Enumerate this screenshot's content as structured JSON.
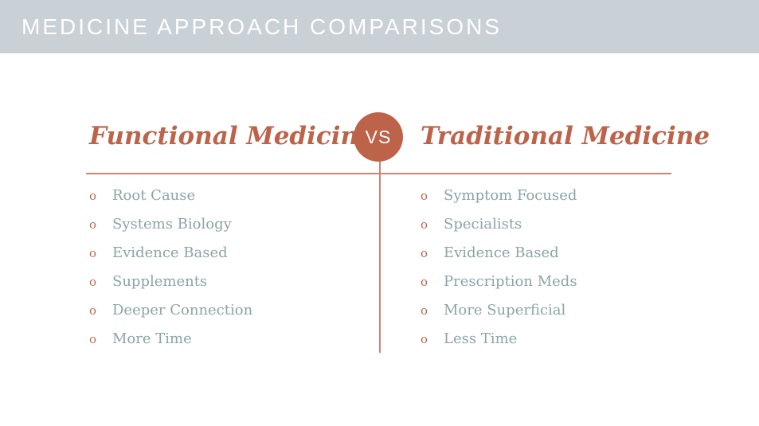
{
  "header": {
    "title": "MEDICINE APPROACH COMPARISONS"
  },
  "vs_badge": {
    "label": "VS"
  },
  "bullet_glyph": "o",
  "left_column": {
    "title": "Functional Medicine",
    "items": [
      "Root Cause",
      "Systems Biology",
      "Evidence Based",
      "Supplements",
      "Deeper Connection",
      "More Time"
    ]
  },
  "right_column": {
    "title": "Traditional Medicine",
    "items": [
      "Symptom Focused",
      "Specialists",
      "Evidence Based",
      "Prescription Meds",
      "More Superficial",
      "Less Time"
    ]
  },
  "colors": {
    "header_bar": "#c9d0d6",
    "header_text": "#ffffff",
    "accent_terracotta": "#bd6349",
    "divider_line": "#cd8570",
    "list_item_text": "#8ba4a8"
  }
}
